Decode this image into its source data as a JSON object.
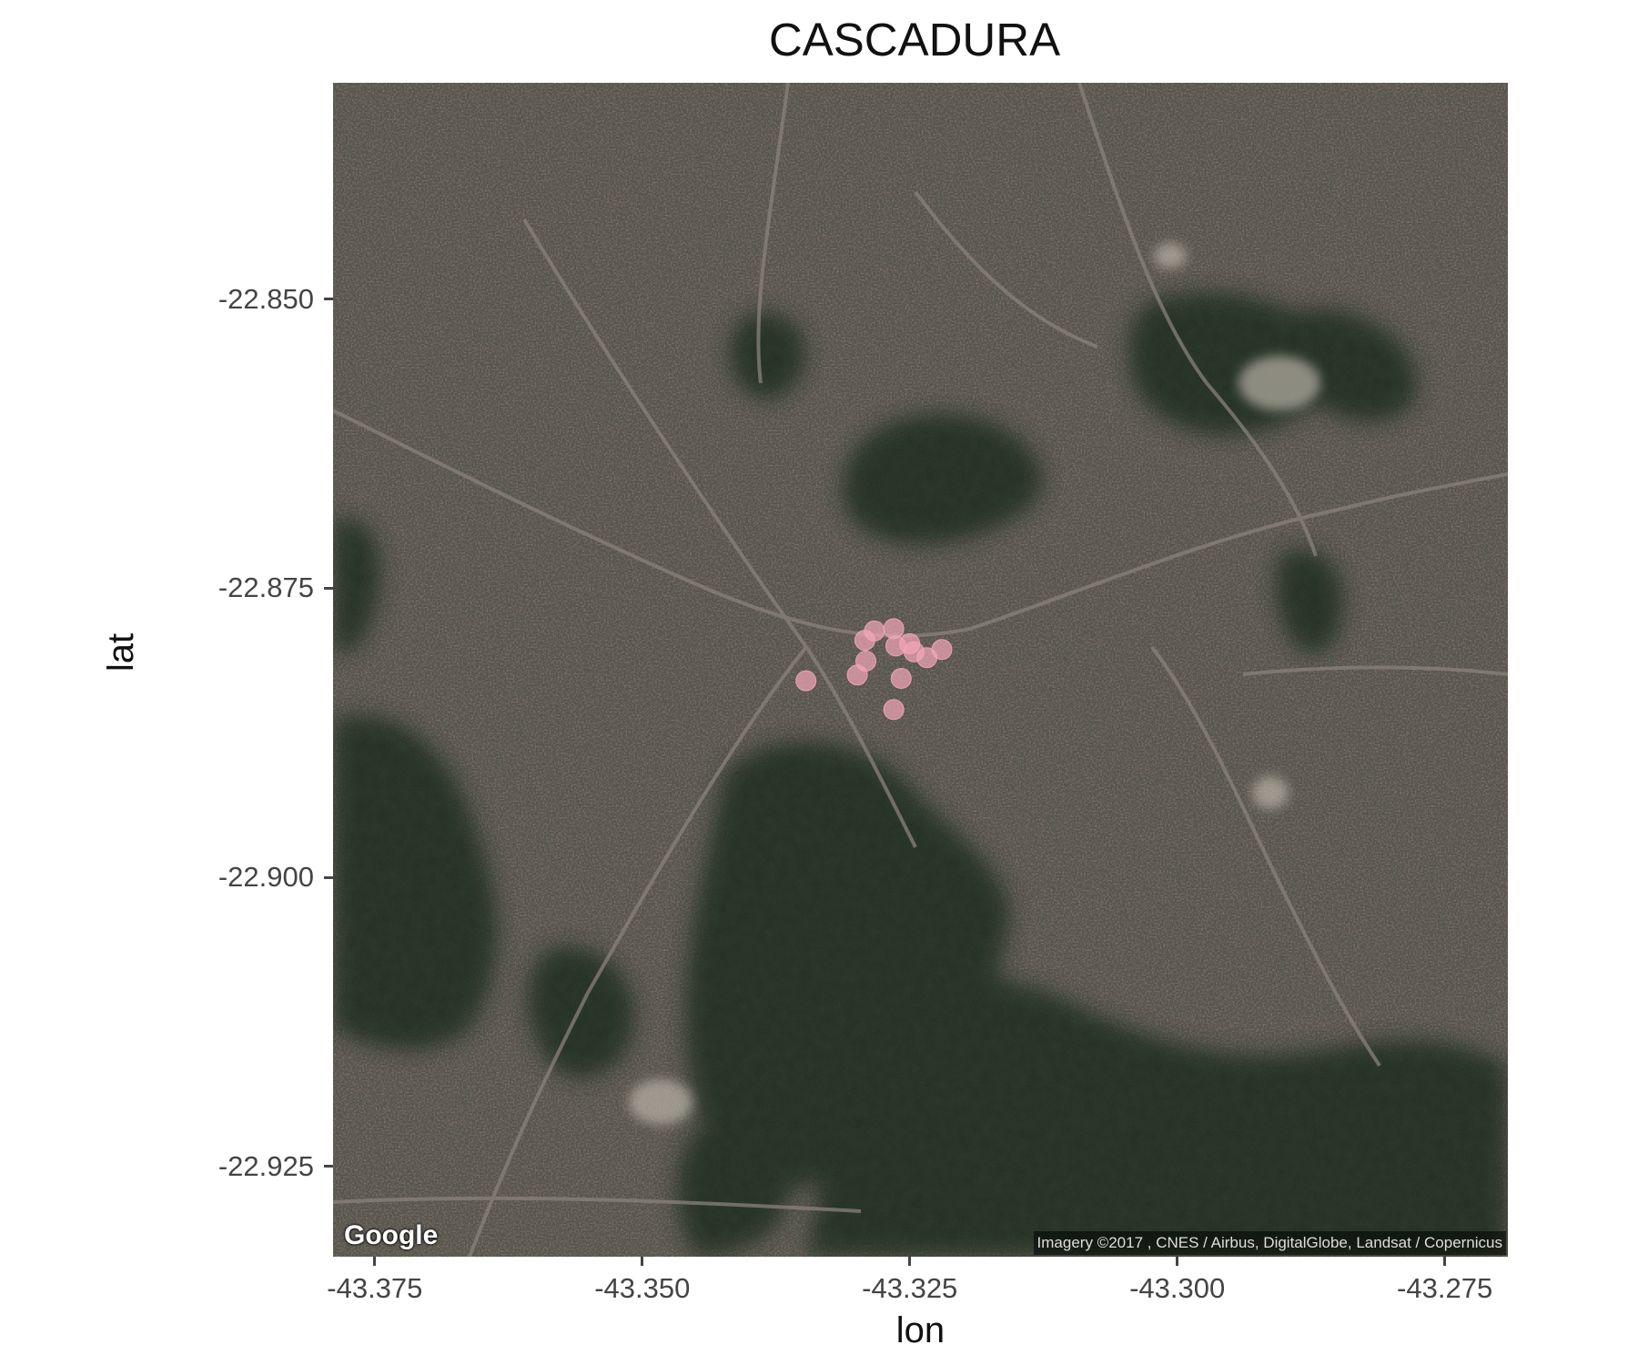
{
  "chart_data": {
    "type": "scatter",
    "title": "CASCADURA",
    "xlabel": "lon",
    "ylabel": "lat",
    "xlim": [
      -43.3789,
      -43.2691
    ],
    "ylim": [
      -22.9328,
      -22.8313
    ],
    "x_ticks": [
      {
        "value": -43.375,
        "label": "-43.375"
      },
      {
        "value": -43.35,
        "label": "-43.350"
      },
      {
        "value": -43.325,
        "label": "-43.325"
      },
      {
        "value": -43.3,
        "label": "-43.300"
      },
      {
        "value": -43.275,
        "label": "-43.275"
      }
    ],
    "y_ticks": [
      {
        "value": -22.85,
        "label": "-22.850"
      },
      {
        "value": -22.875,
        "label": "-22.875"
      },
      {
        "value": -22.9,
        "label": "-22.900"
      },
      {
        "value": -22.925,
        "label": "-22.925"
      }
    ],
    "grid": false,
    "basemap": "satellite",
    "point_color": "#f4a6b8",
    "point_opacity": 0.7,
    "points": [
      {
        "lon": -43.3265,
        "lat": -22.8785
      },
      {
        "lon": -43.3283,
        "lat": -22.8787
      },
      {
        "lon": -43.3292,
        "lat": -22.8795
      },
      {
        "lon": -43.3263,
        "lat": -22.88
      },
      {
        "lon": -43.325,
        "lat": -22.8798
      },
      {
        "lon": -43.3246,
        "lat": -22.8805
      },
      {
        "lon": -43.322,
        "lat": -22.8803
      },
      {
        "lon": -43.3234,
        "lat": -22.881
      },
      {
        "lon": -43.3291,
        "lat": -22.8813
      },
      {
        "lon": -43.3299,
        "lat": -22.8825
      },
      {
        "lon": -43.3258,
        "lat": -22.8828
      },
      {
        "lon": -43.3347,
        "lat": -22.883
      },
      {
        "lon": -43.3265,
        "lat": -22.8855
      }
    ]
  },
  "map": {
    "logo_text": "Google",
    "attribution": "Imagery ©2017 , CNES / Airbus, DigitalGlobe, Landsat / Copernicus"
  }
}
